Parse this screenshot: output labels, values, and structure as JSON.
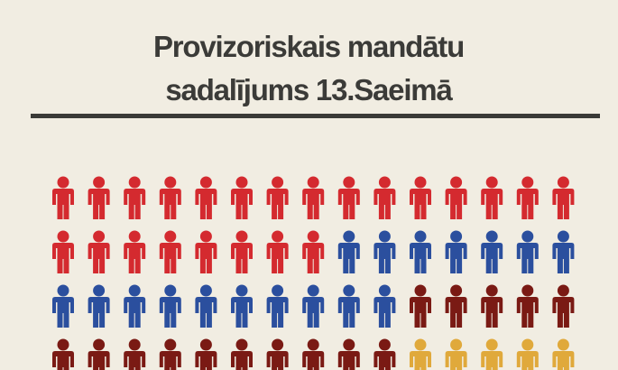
{
  "chart_data": {
    "type": "pictogram",
    "title": "Provizoriskais mandātu sadalījums 13.Saeimā",
    "columns": 15,
    "series": [
      {
        "color": "#d42a2f",
        "value": 23
      },
      {
        "color": "#2b4f9e",
        "value": 17
      },
      {
        "color": "#7a1a14",
        "value": 15
      },
      {
        "color": "#e0a93b",
        "value": 5
      }
    ]
  }
}
